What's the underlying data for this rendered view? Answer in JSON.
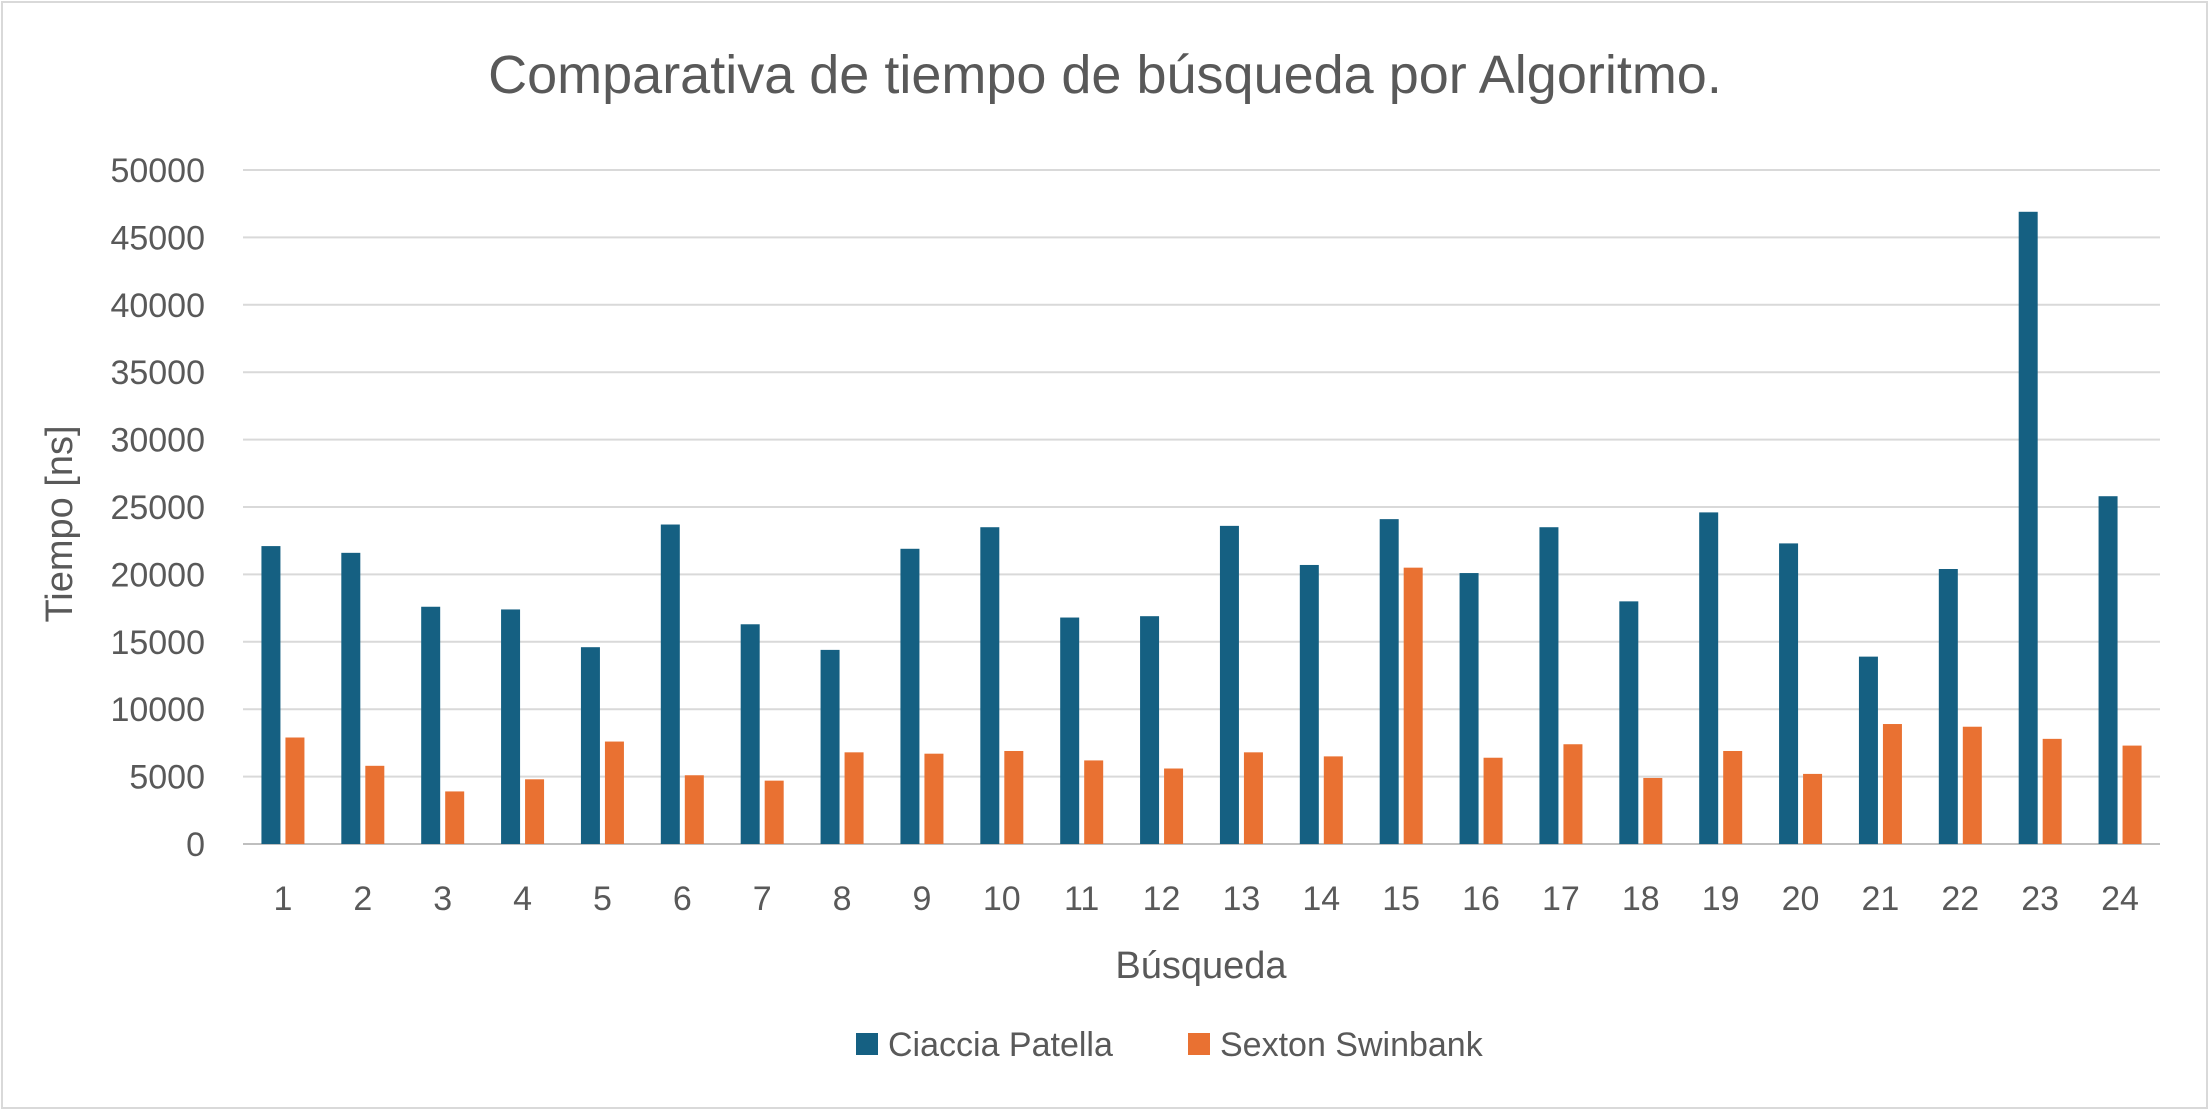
{
  "chart_data": {
    "type": "bar",
    "title": "Comparativa de tiempo de búsqueda por Algoritmo.",
    "xlabel": "Búsqueda",
    "ylabel": "Tiempo [ns]",
    "ylim": [
      0,
      50000
    ],
    "yticks": [
      "0",
      "5000",
      "10000",
      "15000",
      "20000",
      "25000",
      "30000",
      "35000",
      "40000",
      "45000",
      "50000"
    ],
    "grid": true,
    "legend": "bottom",
    "categories": [
      "1",
      "2",
      "3",
      "4",
      "5",
      "6",
      "7",
      "8",
      "9",
      "10",
      "11",
      "12",
      "13",
      "14",
      "15",
      "16",
      "17",
      "18",
      "19",
      "20",
      "21",
      "22",
      "23",
      "24"
    ],
    "series": [
      {
        "name": "Ciaccia Patella",
        "color": "#156082",
        "values": [
          22100,
          21600,
          17600,
          17400,
          14600,
          23700,
          16300,
          14400,
          21900,
          23500,
          16800,
          16900,
          23600,
          20700,
          24100,
          20100,
          23500,
          18000,
          24600,
          22300,
          13900,
          20400,
          46900,
          25800
        ]
      },
      {
        "name": "Sexton Swinbank",
        "color": "#E97132",
        "values": [
          7900,
          5800,
          3900,
          4800,
          7600,
          5100,
          4700,
          6800,
          6700,
          6900,
          6200,
          5600,
          6800,
          6500,
          20500,
          6400,
          7400,
          4900,
          6900,
          5200,
          8900,
          8700,
          7800,
          7300
        ]
      }
    ]
  }
}
